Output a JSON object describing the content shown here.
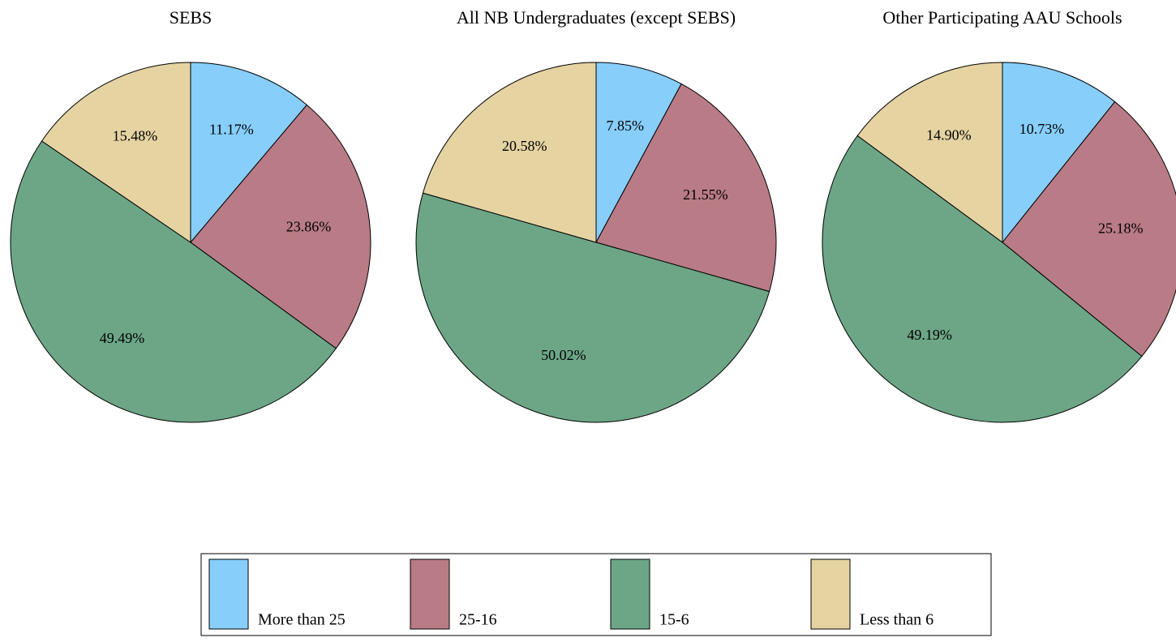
{
  "chart_data": [
    {
      "type": "pie",
      "title": "SEBS",
      "categories": [
        "More than 25",
        "25-16",
        "15-6",
        "Less than 6"
      ],
      "values": [
        11.17,
        23.86,
        49.49,
        15.48
      ],
      "value_labels": [
        "11.17%",
        "23.86%",
        "49.49%",
        "15.48%"
      ],
      "colors": [
        "#87cefa",
        "#b97b85",
        "#6ca686",
        "#e5d3a2"
      ]
    },
    {
      "type": "pie",
      "title": "All NB Undergraduates (except SEBS)",
      "categories": [
        "More than 25",
        "25-16",
        "15-6",
        "Less than 6"
      ],
      "values": [
        7.85,
        21.55,
        50.02,
        20.58
      ],
      "value_labels": [
        "7.85%",
        "21.55%",
        "50.02%",
        "20.58%"
      ],
      "colors": [
        "#87cefa",
        "#b97b85",
        "#6ca686",
        "#e5d3a2"
      ]
    },
    {
      "type": "pie",
      "title": "Other Participating AAU Schools",
      "categories": [
        "More than 25",
        "25-16",
        "15-6",
        "Less than 6"
      ],
      "values": [
        10.73,
        25.18,
        49.19,
        14.9
      ],
      "value_labels": [
        "10.73%",
        "25.18%",
        "49.19%",
        "14.90%"
      ],
      "colors": [
        "#87cefa",
        "#b97b85",
        "#6ca686",
        "#e5d3a2"
      ]
    }
  ]
}
